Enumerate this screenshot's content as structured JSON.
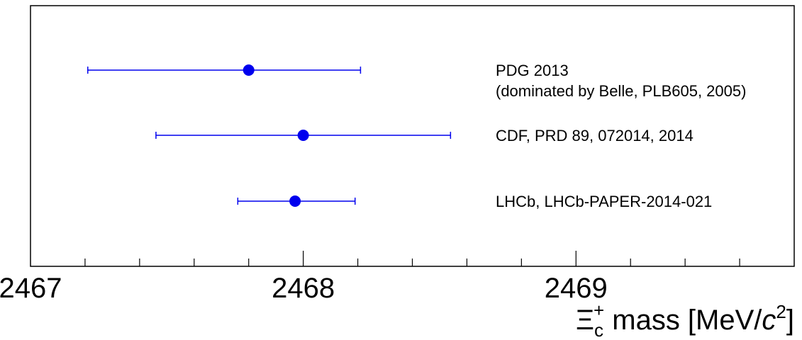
{
  "chart_data": {
    "type": "scatter",
    "xlim": [
      2467,
      2469.8
    ],
    "major_ticks": [
      2467,
      2468,
      2469
    ],
    "tick_labels": [
      "2467",
      "2468",
      "2469"
    ],
    "minor_step": 0.2,
    "xlabel": {
      "symbol": "Ξ",
      "sub": "c",
      "sup": "+",
      "text_before_c": " mass [MeV/",
      "c": "c",
      "c_sup": "2",
      "text_after": "]"
    },
    "grid": false,
    "color": "#0000ee",
    "points": [
      {
        "value": 2467.8,
        "err_low": 0.59,
        "err_high": 0.41,
        "label_lines": [
          "PDG 2013",
          "(dominated by Belle, PLB605, 2005)"
        ]
      },
      {
        "value": 2468.0,
        "err_low": 0.54,
        "err_high": 0.54,
        "label_lines": [
          "CDF, PRD 89, 072014, 2014"
        ]
      },
      {
        "value": 2467.97,
        "err_low": 0.21,
        "err_high": 0.22,
        "label_lines": [
          "LHCb, LHCb-PAPER-2014-021"
        ]
      }
    ]
  }
}
